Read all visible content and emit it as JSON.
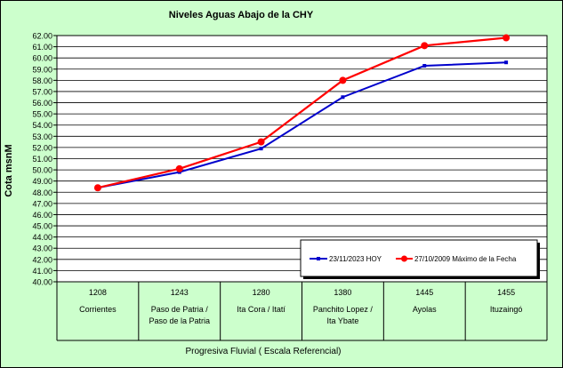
{
  "chart_data": {
    "type": "line",
    "title": "Niveles Aguas Abajo de la CHY",
    "ylabel": "Cota msnM",
    "xlabel": "Progresiva Fluvial ( Escala Referencial)",
    "ylim": [
      40,
      62
    ],
    "ystep": 1,
    "grid": true,
    "legend_position": "lower-right",
    "categories": [
      {
        "km": "1208",
        "name": [
          "Corrientes"
        ]
      },
      {
        "km": "1243",
        "name": [
          "Paso de Patria /",
          "Paso de la Patria"
        ]
      },
      {
        "km": "1280",
        "name": [
          "Ita Cora / Itatí"
        ]
      },
      {
        "km": "1380",
        "name": [
          "Panchito Lopez /",
          "Ita Ybate"
        ]
      },
      {
        "km": "1445",
        "name": [
          "Ayolas"
        ]
      },
      {
        "km": "1455",
        "name": [
          "Ituzaingó"
        ]
      }
    ],
    "series": [
      {
        "name": "23/11/2023 HOY",
        "color": "#0000cc",
        "marker": "square",
        "values": [
          48.4,
          49.8,
          51.9,
          56.5,
          59.3,
          59.6
        ]
      },
      {
        "name": "27/10/2009 Máximo de la Fecha",
        "color": "#ff0000",
        "marker": "circle",
        "values": [
          48.4,
          50.1,
          52.5,
          58.0,
          61.1,
          61.8
        ]
      }
    ]
  }
}
